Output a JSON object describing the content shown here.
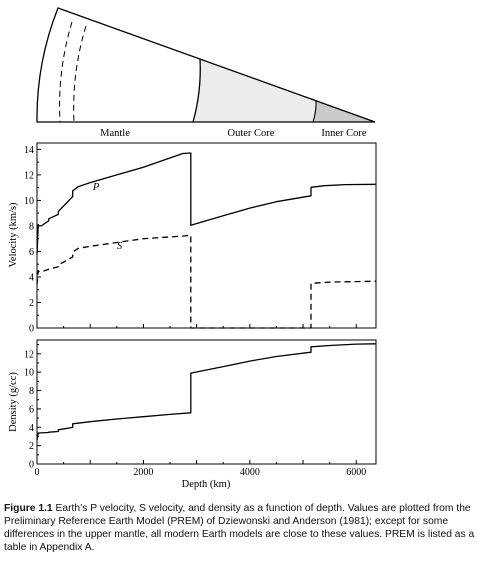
{
  "earth_diagram": {
    "labels": [
      "Mantle",
      "Outer Core",
      "Inner Core"
    ],
    "layer_colors": {
      "mantle": "#ffffff",
      "outer_core": "#ececec",
      "inner_core": "#cacaca"
    }
  },
  "chart_data": [
    {
      "type": "line",
      "title": "",
      "xlabel": "",
      "ylabel": "Velocity (km/s)",
      "xlim": [
        0,
        6371
      ],
      "ylim": [
        0,
        14.5
      ],
      "yticks": [
        0,
        2,
        4,
        6,
        8,
        10,
        12,
        14
      ],
      "grid": false,
      "annotations": [
        {
          "text": "P",
          "x": 1050,
          "y": 10.8
        },
        {
          "text": "S",
          "x": 1500,
          "y": 6.2
        }
      ],
      "series": [
        {
          "name": "P",
          "style": "solid",
          "x": [
            0,
            24,
            24,
            80,
            220,
            220,
            400,
            400,
            670,
            670,
            771,
            1000,
            1500,
            2000,
            2741,
            2891,
            2891,
            3500,
            4000,
            4500,
            5150,
            5150,
            5400,
            5800,
            6371
          ],
          "y": [
            5.8,
            8.11,
            8.0,
            8.0,
            8.4,
            8.56,
            8.9,
            9.13,
            10.3,
            10.75,
            11.07,
            11.4,
            12.0,
            12.6,
            13.68,
            13.72,
            8.06,
            8.8,
            9.4,
            9.9,
            10.36,
            11.03,
            11.15,
            11.24,
            11.26
          ]
        },
        {
          "name": "S",
          "style": "dashed",
          "x": [
            0,
            24,
            24,
            80,
            220,
            220,
            400,
            400,
            670,
            670,
            771,
            1000,
            1500,
            2000,
            2741,
            2891,
            2891,
            5150,
            5150,
            5500,
            6371
          ],
          "y": [
            3.4,
            4.5,
            4.45,
            4.4,
            4.6,
            4.6,
            4.8,
            4.93,
            5.57,
            5.95,
            6.24,
            6.4,
            6.7,
            7.0,
            7.2,
            7.27,
            0,
            0,
            3.5,
            3.6,
            3.67
          ]
        }
      ]
    },
    {
      "type": "line",
      "title": "",
      "xlabel": "Depth (km)",
      "ylabel": "Density (g/cc)",
      "xlim": [
        0,
        6371
      ],
      "ylim": [
        0,
        13.5
      ],
      "yticks": [
        0,
        2,
        4,
        6,
        8,
        10,
        12
      ],
      "xticks": [
        0,
        2000,
        4000,
        6000
      ],
      "xtick_labels": [
        "0",
        "2000",
        "4000",
        "6000"
      ],
      "grid": false,
      "series": [
        {
          "name": "Density",
          "style": "solid",
          "x": [
            0,
            24,
            24,
            220,
            220,
            400,
            400,
            670,
            670,
            1000,
            1500,
            2000,
            2500,
            2891,
            2891,
            3500,
            4000,
            4500,
            5150,
            5150,
            5500,
            6000,
            6371
          ],
          "y": [
            2.6,
            3.38,
            3.38,
            3.43,
            3.46,
            3.54,
            3.72,
            3.99,
            4.38,
            4.6,
            4.9,
            5.15,
            5.4,
            5.57,
            9.9,
            10.6,
            11.2,
            11.7,
            12.17,
            12.76,
            12.9,
            13.05,
            13.09
          ]
        }
      ]
    }
  ],
  "caption": {
    "figure_label": "Figure 1.1",
    "text": "  Earth’s P velocity, S velocity, and density as a function of depth. Values are plotted from the Preliminary Reference Earth Model (PREM) of Dziewonski and Anderson (1981); except for some differences in the upper mantle, all modern Earth models are close to these values. PREM is listed as a table in Appendix A."
  }
}
